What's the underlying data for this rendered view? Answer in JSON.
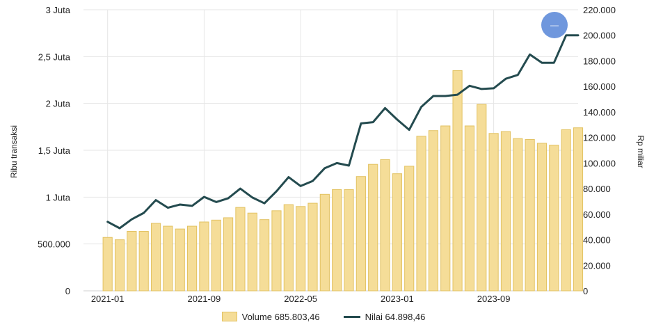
{
  "chart_data": {
    "type": "bar+line",
    "x": [
      "2021-01",
      "2021-02",
      "2021-03",
      "2021-04",
      "2021-05",
      "2021-06",
      "2021-07",
      "2021-08",
      "2021-09",
      "2021-10",
      "2021-11",
      "2021-12",
      "2022-01",
      "2022-02",
      "2022-03",
      "2022-04",
      "2022-05",
      "2022-06",
      "2022-07",
      "2022-08",
      "2022-09",
      "2022-10",
      "2022-11",
      "2022-12",
      "2023-01",
      "2023-02",
      "2023-03",
      "2023-04",
      "2023-05",
      "2023-06",
      "2023-07",
      "2023-08",
      "2023-09",
      "2023-10",
      "2023-11",
      "2023-12",
      "2024-01",
      "2024-02",
      "2024-03",
      "2024-04"
    ],
    "x_tick_labels": [
      "2021-01",
      "2021-09",
      "2022-05",
      "2023-01",
      "2023-09"
    ],
    "x_range": [
      "2020-11",
      "2024-04"
    ],
    "series": [
      {
        "name": "Volume 685.803,46",
        "type": "bar",
        "axis": "left",
        "color": "#f5dd98",
        "values": [
          570000,
          545000,
          635000,
          635000,
          720000,
          690000,
          660000,
          690000,
          735000,
          755000,
          780000,
          890000,
          830000,
          760000,
          855000,
          920000,
          900000,
          935000,
          1030000,
          1080000,
          1080000,
          1220000,
          1350000,
          1400000,
          1250000,
          1330000,
          1650000,
          1710000,
          1760000,
          2350000,
          1760000,
          1990000,
          1680000,
          1700000,
          1625000,
          1615000,
          1575000,
          1555000,
          1720000,
          1740000
        ]
      },
      {
        "name": "Nilai 64.898,46",
        "type": "line",
        "axis": "right",
        "color": "#244b4f",
        "values": [
          54000,
          49000,
          56000,
          61000,
          71000,
          65000,
          67500,
          66500,
          73500,
          69500,
          72500,
          80000,
          73000,
          68500,
          78000,
          89000,
          82000,
          86000,
          96000,
          100000,
          98000,
          131000,
          132000,
          143000,
          134000,
          126000,
          144000,
          152500,
          152500,
          153500,
          160500,
          158000,
          158500,
          166000,
          169000,
          185000,
          178500,
          178500,
          200000,
          200000
        ]
      }
    ],
    "y_left": {
      "label": "Ribu transaksi",
      "range": [
        0,
        3000000
      ],
      "ticks": [
        0,
        500000,
        1000000,
        1500000,
        2000000,
        2500000,
        3000000
      ],
      "tick_labels": [
        "0",
        "500.000",
        "1 Juta",
        "1,5 Juta",
        "2 Juta",
        "2,5 Juta",
        "3 Juta"
      ]
    },
    "y_right": {
      "label": "Rp miliar",
      "range": [
        0,
        220000
      ],
      "ticks": [
        0,
        20000,
        40000,
        60000,
        80000,
        100000,
        120000,
        140000,
        160000,
        180000,
        200000,
        220000
      ],
      "tick_labels": [
        "0",
        "20.000",
        "40.000",
        "60.000",
        "80.000",
        "100.000",
        "120.000",
        "140.000",
        "160.000",
        "180.000",
        "200.000",
        "220.000"
      ]
    },
    "grid": "vertical at x ticks, horizontal at left-axis ticks",
    "legend": "bottom-center",
    "accent_colors": {
      "bar_fill": "#f5dd98",
      "bar_border": "#e2c262",
      "line": "#244b4f",
      "handle": "#6f97dd"
    }
  },
  "overlay": {
    "handle_icon": "blue-circle-handle-icon",
    "handle_label": "—"
  }
}
